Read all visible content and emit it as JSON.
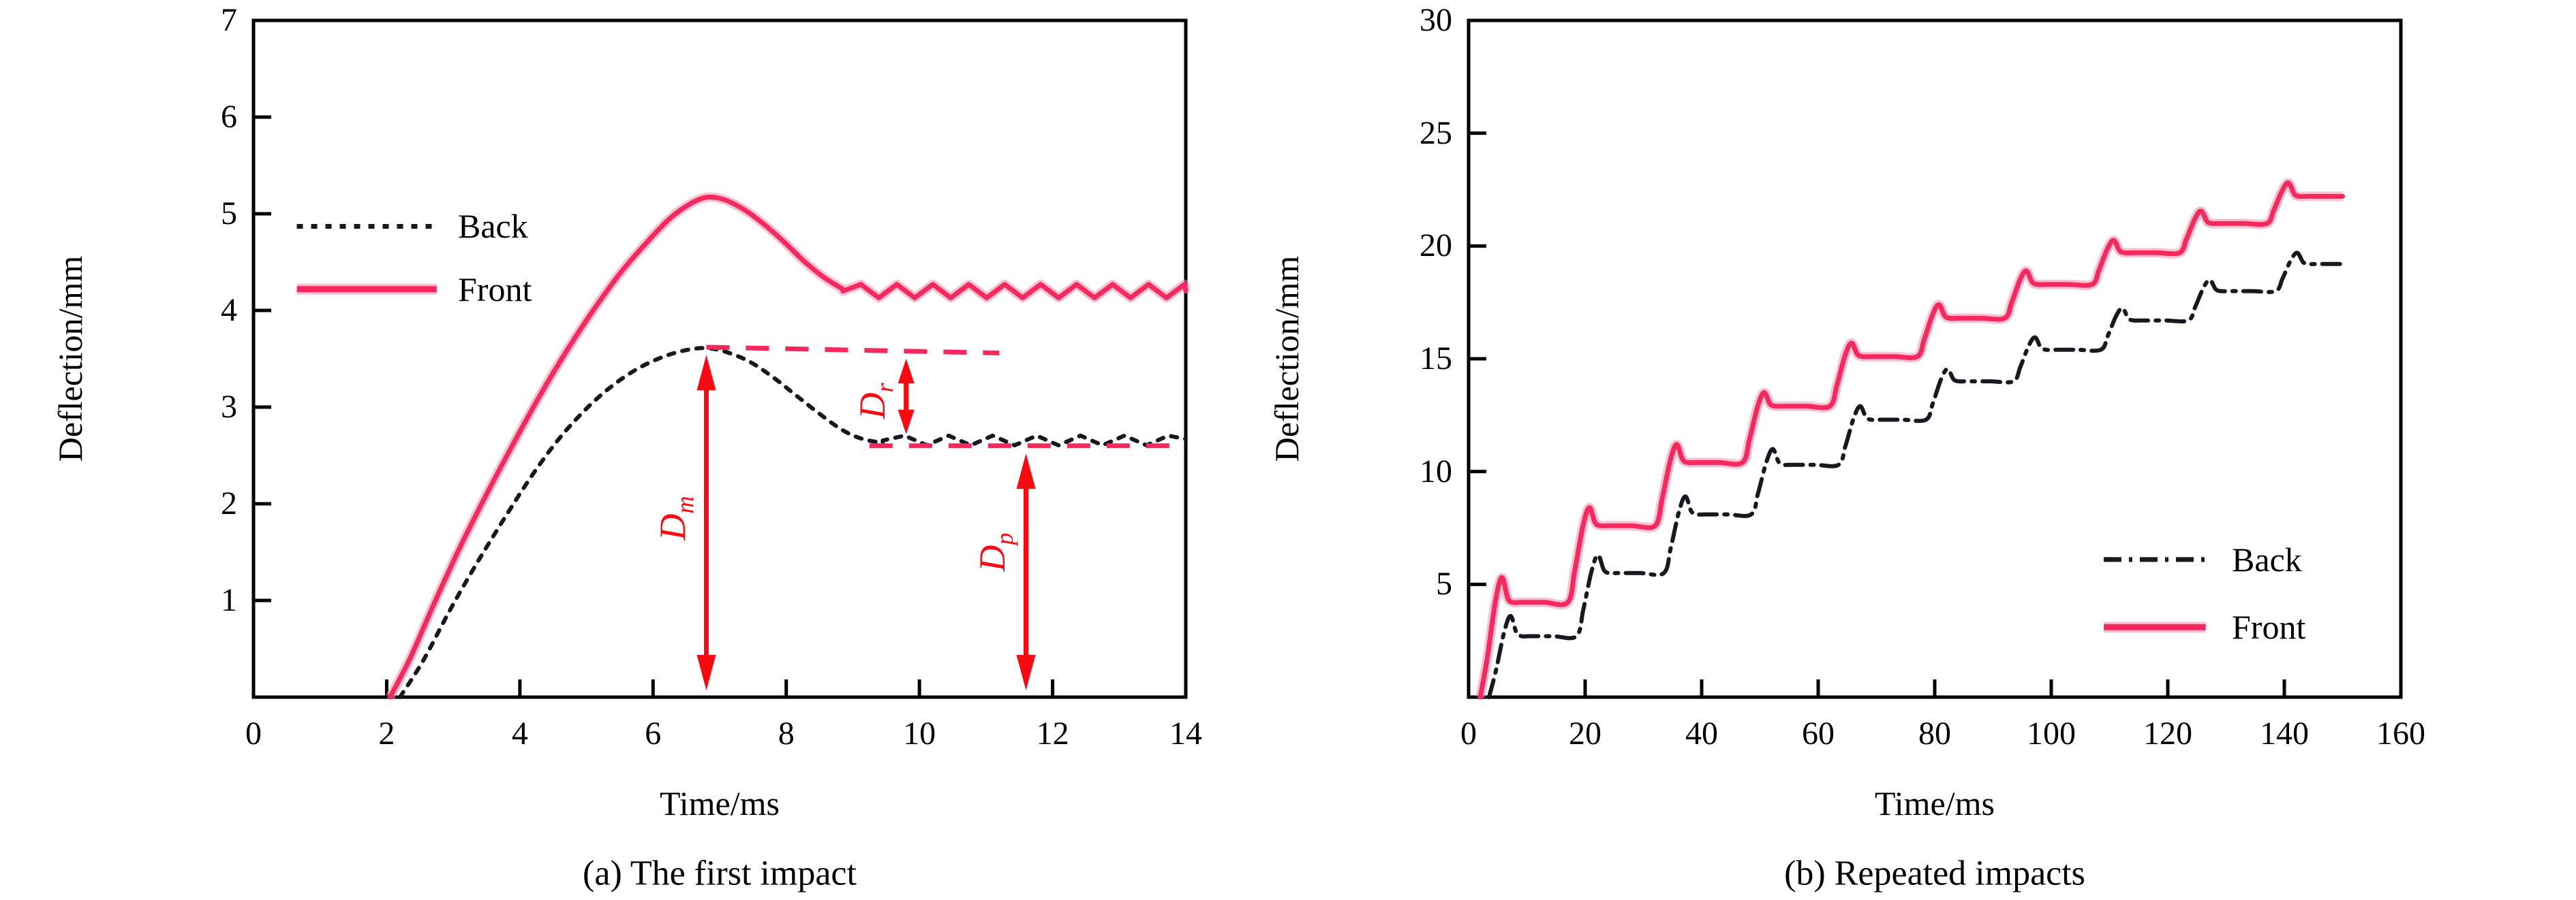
{
  "page": {
    "background": "#ffffff"
  },
  "colors": {
    "front": "#f5295e",
    "front_glow": "rgba(250,140,175,0.55)",
    "back": "#181820",
    "arrow_red": "#fa0a10",
    "axis": "#000000"
  },
  "chart_data": [
    {
      "id": "first-impact",
      "type": "line",
      "caption": "(a) The first impact",
      "xlabel": "Time/ms",
      "ylabel": "Deflection/mm",
      "xlim": [
        0,
        14
      ],
      "ylim": [
        0,
        7
      ],
      "xticks": [
        0,
        2,
        4,
        6,
        8,
        10,
        12,
        14
      ],
      "yticks": [
        0,
        1,
        2,
        3,
        4,
        5,
        6,
        7
      ],
      "grid": false,
      "legend_position": "upper-left-inside",
      "legend": {
        "sample_x": [
          0.65,
          2.75
        ],
        "label_x": 3.05,
        "rows": [
          {
            "label": "Back",
            "series": "back",
            "y": 4.87
          },
          {
            "label": "Front",
            "series": "front",
            "y": 4.22
          }
        ]
      },
      "series": [
        {
          "name": "Back",
          "key": "back",
          "style": "dotted",
          "points": [
            [
              2.2,
              0
            ],
            [
              2.55,
              0.38
            ],
            [
              2.95,
              0.9
            ],
            [
              3.35,
              1.38
            ],
            [
              3.75,
              1.83
            ],
            [
              4.15,
              2.26
            ],
            [
              4.55,
              2.64
            ],
            [
              4.95,
              2.95
            ],
            [
              5.35,
              3.2
            ],
            [
              5.75,
              3.39
            ],
            [
              6.15,
              3.52
            ],
            [
              6.5,
              3.59
            ],
            [
              6.8,
              3.61
            ],
            [
              7.1,
              3.57
            ],
            [
              7.45,
              3.47
            ],
            [
              7.8,
              3.31
            ],
            [
              8.15,
              3.12
            ],
            [
              8.5,
              2.93
            ],
            [
              8.85,
              2.76
            ],
            [
              9.15,
              2.67
            ],
            [
              9.45,
              2.63
            ]
          ],
          "tail": {
            "from": 9.45,
            "to": 14,
            "base": 2.655,
            "amp": 0.05,
            "half_period": 0.33,
            "end_value": 2.67
          }
        },
        {
          "name": "Front",
          "key": "front",
          "style": "solid",
          "points": [
            [
              2.05,
              0
            ],
            [
              2.35,
              0.4
            ],
            [
              2.7,
              0.95
            ],
            [
              3.1,
              1.55
            ],
            [
              3.5,
              2.1
            ],
            [
              3.9,
              2.62
            ],
            [
              4.3,
              3.12
            ],
            [
              4.7,
              3.58
            ],
            [
              5.1,
              4.0
            ],
            [
              5.5,
              4.38
            ],
            [
              5.9,
              4.7
            ],
            [
              6.25,
              4.95
            ],
            [
              6.55,
              5.1
            ],
            [
              6.8,
              5.17
            ],
            [
              7.05,
              5.15
            ],
            [
              7.35,
              5.05
            ],
            [
              7.65,
              4.9
            ],
            [
              7.95,
              4.72
            ],
            [
              8.25,
              4.52
            ],
            [
              8.55,
              4.35
            ],
            [
              8.85,
              4.22
            ]
          ],
          "tail": {
            "from": 8.85,
            "to": 14,
            "base": 4.2,
            "amp": 0.07,
            "half_period": 0.27,
            "end_value": 4.2
          },
          "peak_value": 5.17,
          "peak_time": 6.8,
          "settled_value": 4.2
        }
      ],
      "annotations": {
        "dashed_reference_lines": [
          {
            "x1": 6.8,
            "y1": 3.62,
            "x2": 11.2,
            "y2": 3.56
          },
          {
            "x1": 9.25,
            "y1": 2.6,
            "x2": 14,
            "y2": 2.6
          }
        ],
        "arrows": [
          {
            "name": "max-deflection",
            "letter": "D",
            "sub": "m",
            "x": 6.8,
            "y1": 0.07,
            "y2": 3.54,
            "label_x": 6.33,
            "label_y": 1.85
          },
          {
            "name": "rebound-deflection",
            "letter": "D",
            "sub": "r",
            "x": 9.8,
            "y1": 2.72,
            "y2": 3.5,
            "label_x": 9.33,
            "label_y": 3.06
          },
          {
            "name": "permanent-deflection",
            "letter": "D",
            "sub": "p",
            "x": 11.6,
            "y1": 0.07,
            "y2": 2.52,
            "label_x": 11.13,
            "label_y": 1.5
          }
        ]
      }
    },
    {
      "id": "repeated-impacts",
      "type": "line",
      "caption": "(b) Repeated impacts",
      "xlabel": "Time/ms",
      "ylabel": "Deflection/mm",
      "xlim": [
        0,
        160
      ],
      "ylim": [
        0,
        30
      ],
      "xticks": [
        0,
        20,
        40,
        60,
        80,
        100,
        120,
        140,
        160
      ],
      "yticks": [
        0,
        5,
        10,
        15,
        20,
        25,
        30
      ],
      "grid": false,
      "legend_position": "lower-right-inside",
      "legend": {
        "sample_x": [
          109,
          126.5
        ],
        "label_x": 131,
        "rows": [
          {
            "label": "Back",
            "series": "back",
            "y": 6.1
          },
          {
            "label": "Front",
            "series": "front",
            "y": 3.1
          }
        ]
      },
      "series": [
        {
          "name": "Back",
          "key": "back",
          "style": "dashdot",
          "staircase": {
            "start_value": 0,
            "rise_starts": [
              3.5,
              18.5,
              33.5,
              48.5,
              63.5,
              78.5,
              93.5,
              108.5,
              123.5,
              138.5
            ],
            "peaks": [
              3.6,
              6.3,
              8.9,
              11.0,
              12.9,
              14.55,
              15.95,
              17.25,
              18.5,
              19.7
            ],
            "plateaus": [
              2.7,
              5.5,
              8.1,
              10.3,
              12.3,
              14.0,
              15.4,
              16.7,
              18.0,
              19.2
            ],
            "end_time": 150
          }
        },
        {
          "name": "Front",
          "key": "front",
          "style": "solid",
          "staircase": {
            "start_value": 0,
            "rise_starts": [
              2,
              17,
              32,
              47,
              62,
              77,
              92,
              107,
              122,
              137
            ],
            "peaks": [
              5.3,
              8.4,
              11.2,
              13.5,
              15.7,
              17.4,
              18.9,
              20.25,
              21.55,
              22.8
            ],
            "plateaus": [
              4.2,
              7.6,
              10.4,
              12.9,
              15.1,
              16.8,
              18.3,
              19.7,
              21.0,
              22.2
            ],
            "end_time": 150
          }
        }
      ],
      "annotations": {
        "dashed_reference_lines": [],
        "arrows": []
      }
    }
  ]
}
